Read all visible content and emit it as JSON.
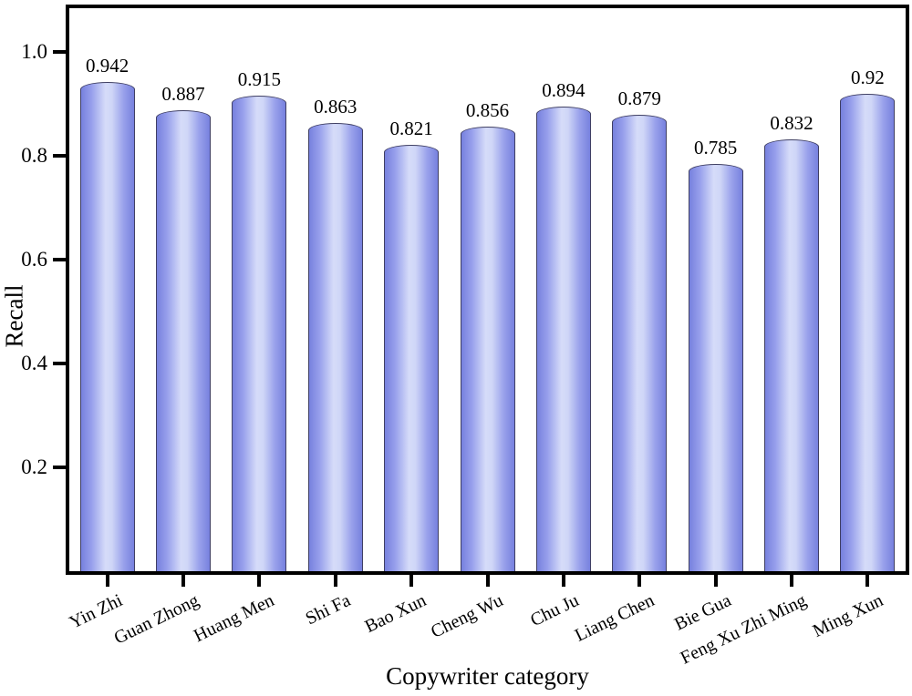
{
  "chart_data": {
    "type": "bar",
    "title": "",
    "xlabel": "Copywriter category",
    "ylabel": "Recall",
    "categories": [
      "Yin Zhi",
      "Guan Zhong",
      "Huang Men",
      "Shi Fa",
      "Bao Xun",
      "Cheng Wu",
      "Chu Ju",
      "Liang Chen",
      "Bie Gua",
      "Feng Xu Zhi Ming",
      "Ming Xun"
    ],
    "values": [
      0.942,
      0.887,
      0.915,
      0.863,
      0.821,
      0.856,
      0.894,
      0.879,
      0.785,
      0.832,
      0.92
    ],
    "value_labels": [
      "0.942",
      "0.887",
      "0.915",
      "0.863",
      "0.821",
      "0.856",
      "0.894",
      "0.879",
      "0.785",
      "0.832",
      "0.92"
    ],
    "yticks": [
      0.2,
      0.4,
      0.6,
      0.8,
      1.0
    ],
    "ytick_labels": [
      "0.2",
      "0.4",
      "0.6",
      "0.8",
      "1.0"
    ],
    "ylim": [
      0,
      1.09
    ],
    "grid": false,
    "legend": null,
    "xtick_label_rotation_deg": -26,
    "colors": {
      "bar_fill_edge": "#7781de",
      "bar_fill_center": "#d6dcf9",
      "bar_outline": "#3f3f63",
      "axis": "#000000",
      "text": "#000000",
      "background": "#ffffff"
    }
  }
}
